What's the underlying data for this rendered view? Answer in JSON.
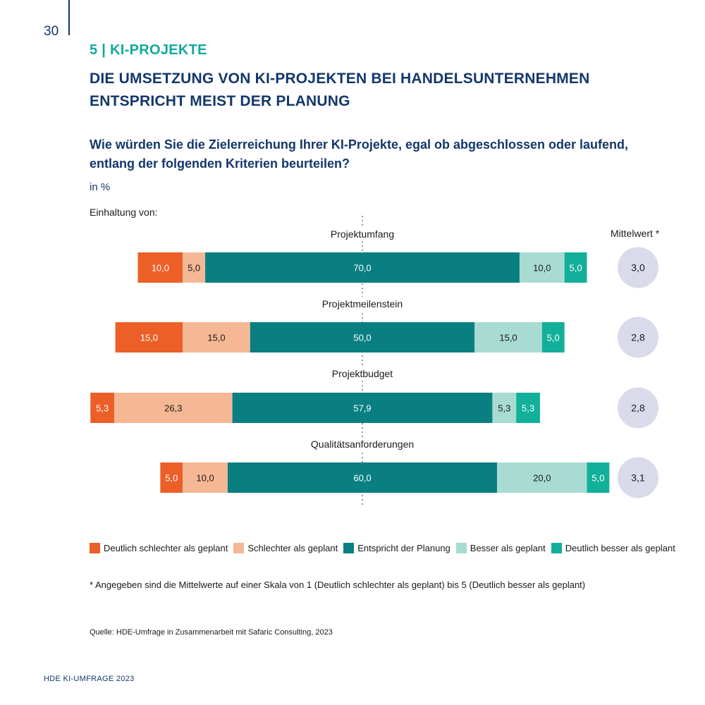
{
  "page": {
    "number": "30",
    "section": "5 | KI-PROJEKTE",
    "headline_line1": "DIE UMSETZUNG VON KI-PROJEKTEN BEI HANDELSUNTERNEHMEN",
    "headline_line2": "ENTSPRICHT MEIST DER PLANUNG",
    "question_line1": "Wie würden Sie die Zielerreichung Ihrer KI-Projekte, egal ob abgeschlossen oder laufend,",
    "question_line2": "entlang der folgenden Kriterien beurteilen?",
    "unit": "in %",
    "subheading": "Einhaltung von:",
    "mean_header": "Mittelwert *",
    "footnote": "* Angegeben sind die Mittelwerte auf einer Skala von 1 (Deutlich schlechter als geplant) bis 5 (Deutlich besser als geplant)",
    "source": "Quelle: HDE-Umfrage in Zusammenarbeit mit Safaric Consulting, 2023",
    "footer": "HDE KI-UMFRAGE 2023"
  },
  "colors": {
    "accent_teal": "#12a99a",
    "navy": "#13376b",
    "mean_circle": "#d9dbea"
  },
  "chart_data": {
    "type": "bar",
    "orientation": "horizontal-diverging-stacked",
    "center_category": "Entspricht der Planung",
    "categories": [
      "Projektumfang",
      "Projektmeilenstein",
      "Projektbudget",
      "Qualitätsanforderungen"
    ],
    "series": [
      {
        "name": "Deutlich schlechter als geplant",
        "color": "#ec5f26",
        "values": [
          10.0,
          15.0,
          5.3,
          5.0
        ],
        "labels": [
          "10,0",
          "15,0",
          "5,3",
          "5,0"
        ],
        "label_color": "#ffffff"
      },
      {
        "name": "Schlechter als geplant",
        "color": "#f6b894",
        "values": [
          5.0,
          15.0,
          26.3,
          10.0
        ],
        "labels": [
          "5,0",
          "15,0",
          "26,3",
          "10,0"
        ],
        "label_color": "#1a1a1a"
      },
      {
        "name": "Entspricht der Planung",
        "color": "#0a7f82",
        "values": [
          70.0,
          50.0,
          57.9,
          60.0
        ],
        "labels": [
          "70,0",
          "50,0",
          "57,9",
          "60,0"
        ],
        "label_color": "#ffffff"
      },
      {
        "name": "Besser als geplant",
        "color": "#a8dbd2",
        "values": [
          10.0,
          15.0,
          5.3,
          20.0
        ],
        "labels": [
          "10,0",
          "15,0",
          "5,3",
          "20,0"
        ],
        "label_color": "#1a1a1a"
      },
      {
        "name": "Deutlich besser als geplant",
        "color": "#12b09b",
        "values": [
          5.0,
          5.0,
          5.3,
          5.0
        ],
        "labels": [
          "5,0",
          "5,0",
          "5,3",
          "5,0"
        ],
        "label_color": "#ffffff"
      }
    ],
    "means": [
      "3,0",
      "2,8",
      "2,8",
      "3,1"
    ],
    "legend_position": "bottom"
  }
}
